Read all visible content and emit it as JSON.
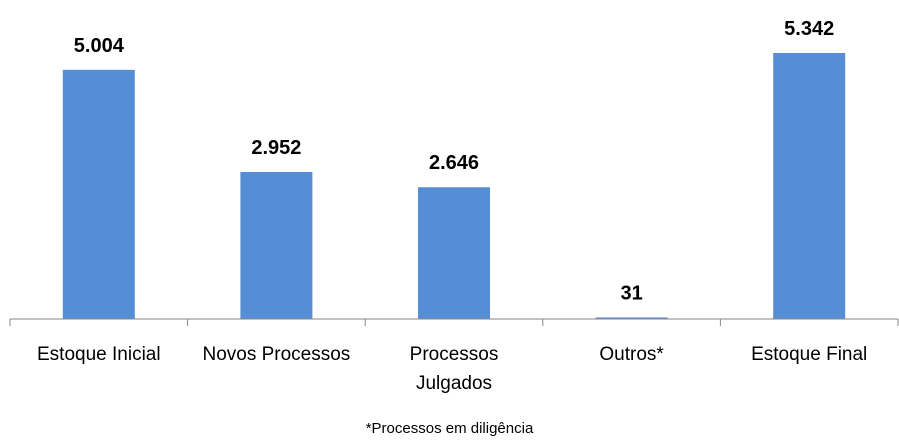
{
  "chart_data": {
    "type": "bar",
    "categories": [
      "Estoque Inicial",
      "Novos Processos",
      "Processos Julgados",
      "Outros*",
      "Estoque Final"
    ],
    "values": [
      5004,
      2952,
      2646,
      31,
      5342
    ],
    "value_labels": [
      "5.004",
      "2.952",
      "2.646",
      "31",
      "5.342"
    ],
    "color": "#558ed5",
    "footnote": "*Processos em diligência"
  }
}
